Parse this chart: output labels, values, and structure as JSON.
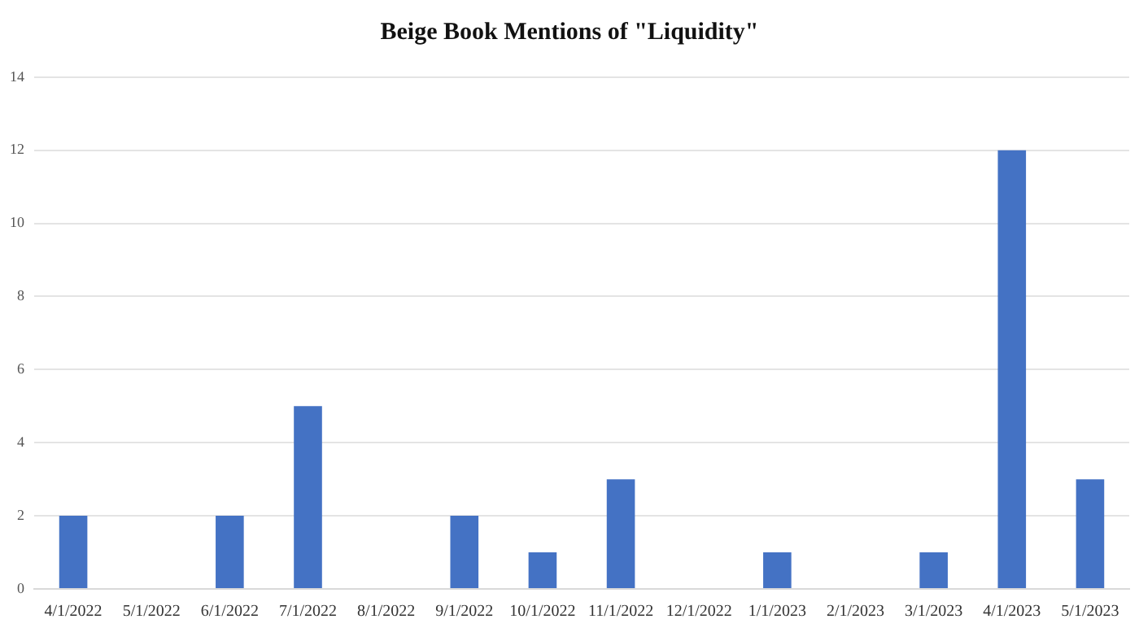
{
  "chart_data": {
    "type": "bar",
    "title": "Beige Book Mentions of \"Liquidity\"",
    "categories": [
      "4/1/2022",
      "5/1/2022",
      "6/1/2022",
      "7/1/2022",
      "8/1/2022",
      "9/1/2022",
      "10/1/2022",
      "11/1/2022",
      "12/1/2022",
      "1/1/2023",
      "2/1/2023",
      "3/1/2023",
      "4/1/2023",
      "5/1/2023"
    ],
    "values": [
      2,
      0,
      2,
      5,
      0,
      2,
      1,
      3,
      0,
      1,
      0,
      1,
      12,
      3
    ],
    "color": "#4472c4",
    "ylim": [
      0,
      14
    ],
    "yticks": [
      0,
      2,
      4,
      6,
      8,
      10,
      12,
      14
    ],
    "grid": "y",
    "legend": false
  }
}
